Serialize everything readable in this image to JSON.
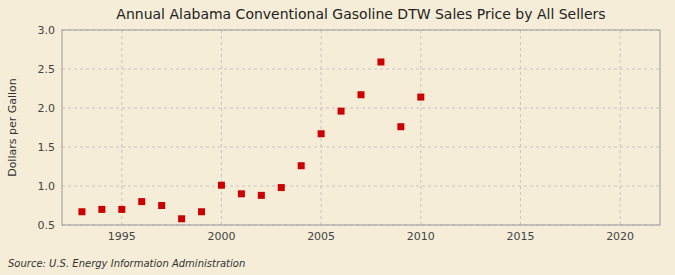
{
  "chart_data": {
    "type": "scatter",
    "title": "Annual Alabama Conventional Gasoline DTW Sales Price by All Sellers",
    "ylabel": "Dollars per Gallon",
    "source": "Source: U.S. Energy Information Administration",
    "x": [
      1993,
      1994,
      1995,
      1996,
      1997,
      1998,
      1999,
      2000,
      2001,
      2002,
      2003,
      2004,
      2005,
      2006,
      2007,
      2008,
      2009,
      2010
    ],
    "values": [
      0.67,
      0.7,
      0.7,
      0.8,
      0.75,
      0.58,
      0.67,
      1.01,
      0.9,
      0.88,
      0.98,
      1.26,
      1.67,
      1.96,
      2.17,
      2.59,
      1.76,
      2.14
    ],
    "color": "#cc0000",
    "marker": "square",
    "xlim": [
      1992,
      2022
    ],
    "ylim": [
      0.5,
      3.0
    ],
    "xticks": [
      1995,
      2000,
      2005,
      2010,
      2015,
      2020
    ],
    "yticks": [
      0.5,
      {
        "value": 1,
        "label": "1.0"
      },
      1.5,
      {
        "value": 2,
        "label": "2.0"
      },
      2.5,
      {
        "value": 3,
        "label": "3.0"
      }
    ],
    "grid": true
  }
}
